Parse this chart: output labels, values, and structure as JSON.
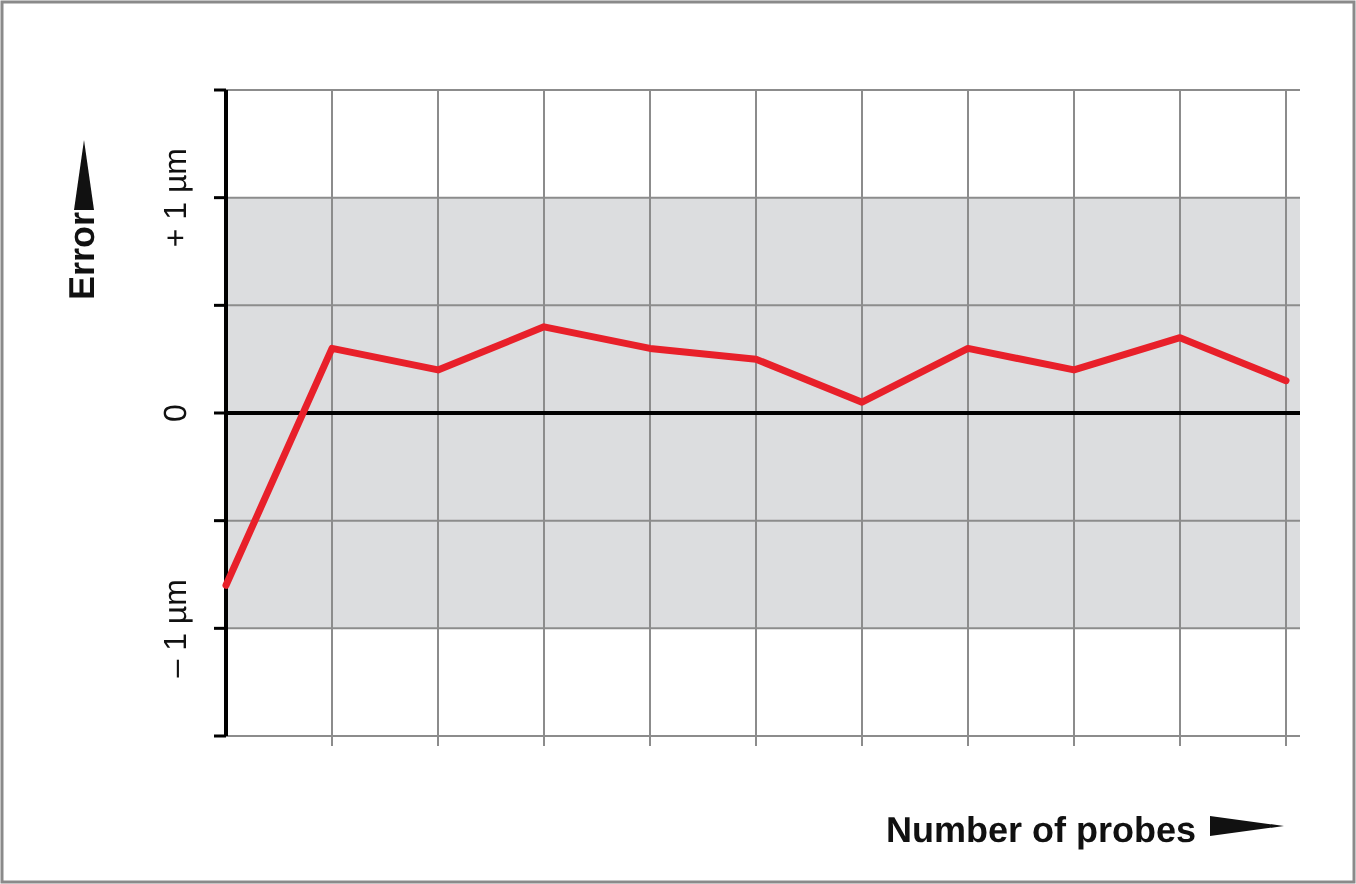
{
  "chart_data": {
    "type": "line",
    "xlabel": "Number of probes",
    "ylabel": "Error",
    "categories": [
      null,
      null,
      null,
      null,
      null,
      null,
      null,
      null,
      null,
      null,
      null
    ],
    "series": [
      {
        "color": "#e8202a",
        "values": [
          -0.8,
          0.3,
          0.2,
          0.4,
          0.3,
          0.25,
          0.05,
          0.3,
          0.2,
          0.35,
          0.15
        ]
      }
    ],
    "ylim": [
      -1.5,
      1.5
    ],
    "yticks": [
      {
        "value": -1.5,
        "label": null
      },
      {
        "value": -1,
        "label": "– 1 µm"
      },
      {
        "value": -0.5,
        "label": null
      },
      {
        "value": 0,
        "label": "0"
      },
      {
        "value": 0.5,
        "label": null
      },
      {
        "value": 1,
        "label": "+ 1 µm"
      },
      {
        "value": 1.5,
        "label": null
      }
    ],
    "grid": true,
    "marker": "none",
    "line_style": "solid",
    "bands": [
      {
        "axis": "y",
        "from": -1,
        "to": 1,
        "color": "#dcdddf"
      }
    ],
    "ref_lines": [
      {
        "axis": "y",
        "value": 0,
        "color": "#000000"
      }
    ]
  }
}
